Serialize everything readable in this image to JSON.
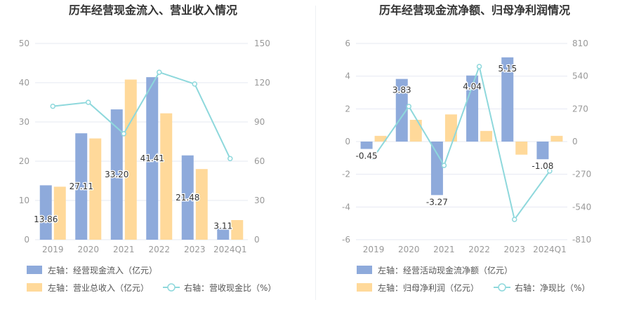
{
  "charts": [
    {
      "title": "历年经营现金流入、营业收入情况",
      "left_axis": {
        "min": 0,
        "max": 50,
        "ticks": [
          0,
          10,
          20,
          30,
          40,
          50
        ]
      },
      "right_axis": {
        "min": 0,
        "max": 150,
        "ticks": [
          0,
          30,
          60,
          90,
          120,
          150
        ]
      },
      "legend": [
        {
          "label": "左轴：经营现金流入（亿元）",
          "kind": "bar",
          "series": 0
        },
        {
          "label": "左轴：营业总收入（亿元）",
          "kind": "bar",
          "series": 1
        },
        {
          "label": "右轴：营收现金比（%）",
          "kind": "line",
          "series": 2
        }
      ]
    },
    {
      "title": "历年经营现金流净额、归母净利润情况",
      "left_axis": {
        "min": -6,
        "max": 6,
        "ticks": [
          -6,
          -4,
          -2,
          0,
          2,
          4,
          6
        ]
      },
      "right_axis": {
        "min": -810,
        "max": 810,
        "ticks": [
          -810,
          -540,
          -270,
          0,
          270,
          540,
          810
        ]
      },
      "legend": [
        {
          "label": "左轴：经营活动现金流净额（亿元）",
          "kind": "bar",
          "series": 0
        },
        {
          "label": "左轴：归母净利润（亿元）",
          "kind": "bar",
          "series": 1
        },
        {
          "label": "右轴：净现比（%）",
          "kind": "line",
          "series": 2
        }
      ]
    }
  ],
  "colors": {
    "bar_a": "#8eaadb",
    "bar_b": "#ffd99a",
    "line": "#8ed8dc",
    "grid": "#e6e8f2",
    "tick": "#999999",
    "title": "#333333",
    "label": "#333333"
  },
  "chart_data": [
    {
      "type": "bar",
      "categories": [
        "2019",
        "2020",
        "2021",
        "2022",
        "2023",
        "2024Q1"
      ],
      "series": [
        {
          "name": "左轴：经营现金流入（亿元）",
          "axis": "left",
          "kind": "bar",
          "values": [
            13.86,
            27.11,
            33.2,
            41.41,
            21.48,
            3.11
          ],
          "labels": [
            "13.86",
            "27.11",
            "33.20",
            "41.41",
            "21.48",
            "3.11"
          ]
        },
        {
          "name": "左轴：营业总收入（亿元）",
          "axis": "left",
          "kind": "bar",
          "values": [
            13.5,
            25.8,
            40.8,
            32.2,
            18.0,
            5.0
          ]
        },
        {
          "name": "右轴：营收现金比（%）",
          "axis": "right",
          "kind": "line",
          "values": [
            102,
            105,
            81,
            128,
            119,
            62
          ]
        }
      ],
      "ylim_left": [
        0,
        50
      ],
      "ylim_right": [
        0,
        150
      ],
      "grid": true,
      "legend_position": "bottom"
    },
    {
      "type": "bar",
      "categories": [
        "2019",
        "2020",
        "2021",
        "2022",
        "2023",
        "2024Q1"
      ],
      "series": [
        {
          "name": "左轴：经营活动现金流净额（亿元）",
          "axis": "left",
          "kind": "bar",
          "values": [
            -0.45,
            3.83,
            -3.27,
            4.04,
            5.15,
            -1.08
          ],
          "labels": [
            "-0.45",
            "3.83",
            "-3.27",
            "4.04",
            "5.15",
            "-1.08"
          ]
        },
        {
          "name": "左轴：归母净利润（亿元）",
          "axis": "left",
          "kind": "bar",
          "values": [
            0.35,
            1.33,
            1.66,
            0.65,
            -0.8,
            0.35
          ]
        },
        {
          "name": "右轴：净现比（%）",
          "axis": "right",
          "kind": "line",
          "values": [
            -129,
            290,
            -197,
            620,
            -643,
            -243
          ]
        }
      ],
      "ylim_left": [
        -6,
        6
      ],
      "ylim_right": [
        -810,
        810
      ],
      "grid": true,
      "legend_position": "bottom"
    }
  ]
}
